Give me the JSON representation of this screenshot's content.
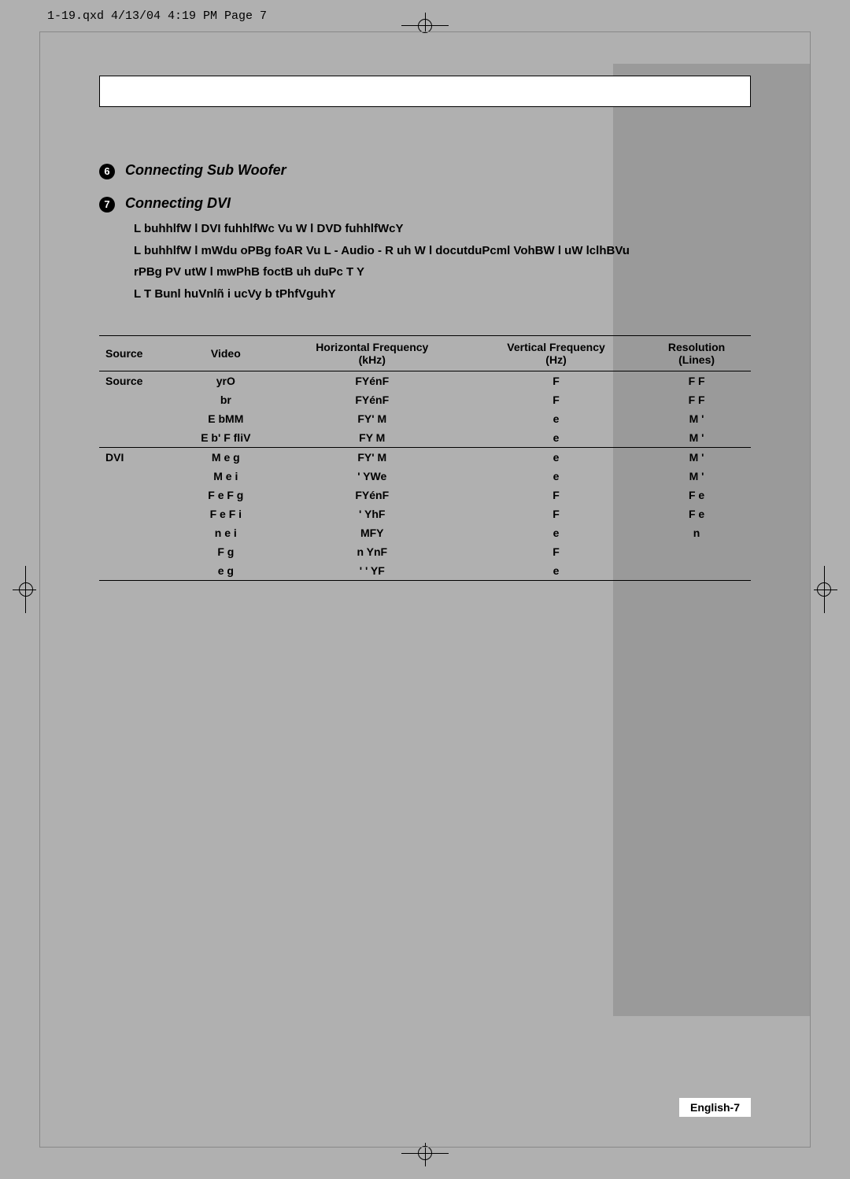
{
  "header": {
    "file_info": "1-19.qxd  4/13/04 4:19 PM  Page 7"
  },
  "sections": {
    "s6": {
      "number": "6",
      "title": "Connecting Sub Woofer"
    },
    "s7": {
      "number": "7",
      "title": "Connecting  DVI",
      "lines": {
        "l1_pre": "L buhhlfW l ",
        "l1_dvi": "DVI",
        "l1_mid": " fuhhlfWc Vu W l ",
        "l1_dvd": "DVD",
        "l1_post": " fuhhlfWcY",
        "l2_pre": "L buhhlfW l mWdu oPBg foAR Vu ",
        "l2_audio": "L - Audio - R",
        "l2_post": " uh W l docutduPcml VohBW l uW lclhBVu",
        "l3": "rPBg   PV utW l mwPhB foctB uh duPc  T Y",
        "l4": "L   T Bunl huVnlñ i ucVy b tPhfVguhY"
      }
    }
  },
  "table": {
    "columns": {
      "c1": "Source",
      "c2": "Video",
      "c3": "Horizontal Frequency",
      "c3_unit": "(kHz)",
      "c4": "Vertical Frequency",
      "c4_unit": "(Hz)",
      "c5": "Resolution",
      "c5_unit": "(Lines)"
    },
    "group1": {
      "label": "Source",
      "r1": {
        "video": "yrO",
        "hf": "FYénF",
        "vf": "F",
        "res": "F F"
      },
      "r2": {
        "video": "br",
        "hf": "FYénF",
        "vf": "F",
        "res": "F F"
      },
      "r3": {
        "video": "E bMM",
        "hf": "FY' M",
        "vf": "e",
        "res": "M '"
      },
      "r4": {
        "video": "E b' F    fliV",
        "hf": "FY M",
        "vf": "e",
        "res": "M '"
      }
    },
    "group2": {
      "label": "DVI",
      "r1": {
        "video": "M   e g",
        "hf": "FY' M",
        "vf": "e",
        "res": "M '"
      },
      "r2": {
        "video": "M   e i",
        "hf": "'  YWe",
        "vf": "e",
        "res": "M '"
      },
      "r3": {
        "video": "F e F g",
        "hf": "FYénF",
        "vf": "F",
        "res": "F e"
      },
      "r4": {
        "video": "F e F i",
        "hf": "'  YhF",
        "vf": "F",
        "res": "F e"
      },
      "r5": {
        "video": "n   e i",
        "hf": "MFY",
        "vf": "e",
        "res": "n"
      },
      "r6": {
        "video": "F g",
        "hf": "n YnF",
        "vf": "F",
        "res": ""
      },
      "r7": {
        "video": "e g",
        "hf": "' ' YF",
        "vf": "e",
        "res": ""
      }
    }
  },
  "footer": {
    "page_number": "English-7"
  },
  "style": {
    "page_bg": "#b0b0b0",
    "gray_block": "#9a9a9a",
    "text_color": "#000000",
    "font_body": "Arial",
    "font_header": "Courier New",
    "fontsize_heading": 18,
    "fontsize_body": 15,
    "fontsize_table": 14
  }
}
